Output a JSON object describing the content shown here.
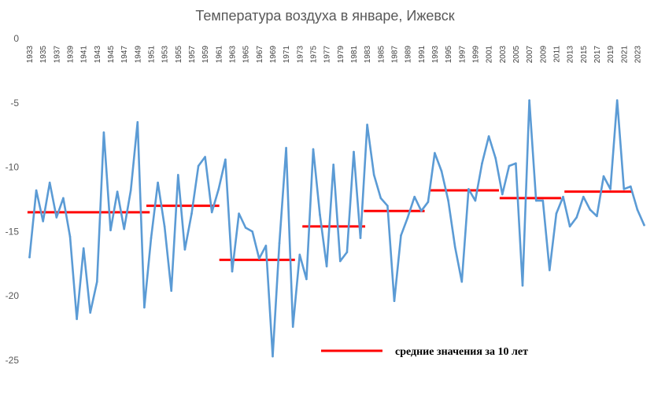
{
  "chart_data": {
    "type": "line",
    "title": "Температура воздуха в январе, Ижевск",
    "ylim": [
      -25,
      0
    ],
    "yticks": [
      0,
      -5,
      -10,
      -15,
      -20,
      -25
    ],
    "x_start_year": 1933,
    "x_end_year": 2024,
    "x_tick_labels": [
      "1933",
      "1935",
      "1937",
      "1939",
      "1941",
      "1943",
      "1945",
      "1947",
      "1949",
      "1951",
      "1953",
      "1955",
      "1957",
      "1959",
      "1961",
      "1963",
      "1965",
      "1967",
      "1969",
      "1971",
      "1973",
      "1975",
      "1977",
      "1979",
      "1981",
      "1983",
      "1985",
      "1987",
      "1989",
      "1991",
      "1993",
      "1995",
      "1997",
      "1999",
      "2001",
      "2003",
      "2005",
      "2007",
      "2009",
      "2011",
      "2013",
      "2015",
      "2017",
      "2019",
      "2021",
      "2023"
    ],
    "grid": false,
    "series": [
      {
        "color": "#5b9bd5",
        "x": [
          1933,
          1934,
          1935,
          1936,
          1937,
          1938,
          1939,
          1940,
          1941,
          1942,
          1943,
          1944,
          1945,
          1946,
          1947,
          1948,
          1949,
          1950,
          1951,
          1952,
          1953,
          1954,
          1955,
          1956,
          1957,
          1958,
          1959,
          1960,
          1961,
          1962,
          1963,
          1964,
          1965,
          1966,
          1967,
          1968,
          1969,
          1970,
          1971,
          1972,
          1973,
          1974,
          1975,
          1976,
          1977,
          1978,
          1979,
          1980,
          1981,
          1982,
          1983,
          1984,
          1985,
          1986,
          1987,
          1988,
          1989,
          1990,
          1991,
          1992,
          1993,
          1994,
          1995,
          1996,
          1997,
          1998,
          1999,
          2000,
          2001,
          2002,
          2003,
          2004,
          2005,
          2006,
          2007,
          2008,
          2009,
          2010,
          2011,
          2012,
          2013,
          2014,
          2015,
          2016,
          2017,
          2018,
          2019,
          2020,
          2021,
          2022,
          2023,
          2024
        ],
        "values": [
          -17.0,
          -11.8,
          -14.2,
          -11.2,
          -13.9,
          -12.4,
          -15.4,
          -21.8,
          -16.3,
          -21.3,
          -18.9,
          -7.3,
          -14.9,
          -11.9,
          -14.8,
          -11.8,
          -6.5,
          -20.9,
          -15.5,
          -11.2,
          -14.6,
          -19.6,
          -10.6,
          -16.4,
          -13.6,
          -9.9,
          -9.2,
          -13.5,
          -11.7,
          -9.4,
          -18.1,
          -13.6,
          -14.7,
          -15.0,
          -17.1,
          -16.1,
          -24.7,
          -15.9,
          -8.5,
          -22.4,
          -16.8,
          -18.7,
          -8.6,
          -13.7,
          -17.7,
          -9.8,
          -17.3,
          -16.6,
          -8.8,
          -15.5,
          -6.7,
          -10.6,
          -12.4,
          -13.0,
          -20.4,
          -15.3,
          -13.9,
          -12.3,
          -13.4,
          -12.7,
          -8.9,
          -10.3,
          -12.6,
          -16.2,
          -18.9,
          -11.7,
          -12.6,
          -9.7,
          -7.6,
          -9.3,
          -12.1,
          -9.9,
          -9.7,
          -19.2,
          -4.8,
          -12.6,
          -12.6,
          -18.0,
          -13.6,
          -12.3,
          -14.6,
          -13.9,
          -12.3,
          -13.3,
          -13.8,
          -10.7,
          -11.7,
          -4.8,
          -11.7,
          -11.5,
          -13.3,
          -14.5
        ]
      },
      {
        "name": "средние значения за 10 лет",
        "color": "#ff0000",
        "segments": [
          {
            "from": 1932.7,
            "to": 1950.8,
            "value": -13.5
          },
          {
            "from": 1950.3,
            "to": 1961.1,
            "value": -13.0
          },
          {
            "from": 1961.1,
            "to": 1972.3,
            "value": -17.2
          },
          {
            "from": 1973.4,
            "to": 1982.7,
            "value": -14.6
          },
          {
            "from": 1982.5,
            "to": 1991.5,
            "value": -13.4
          },
          {
            "from": 1992.3,
            "to": 2002.5,
            "value": -11.8
          },
          {
            "from": 2002.6,
            "to": 2011.7,
            "value": -12.4
          },
          {
            "from": 2012.2,
            "to": 2022.2,
            "value": -11.9
          }
        ]
      }
    ],
    "legend": {
      "label": "средние значения за 10 лет",
      "position": "bottom-right"
    }
  }
}
